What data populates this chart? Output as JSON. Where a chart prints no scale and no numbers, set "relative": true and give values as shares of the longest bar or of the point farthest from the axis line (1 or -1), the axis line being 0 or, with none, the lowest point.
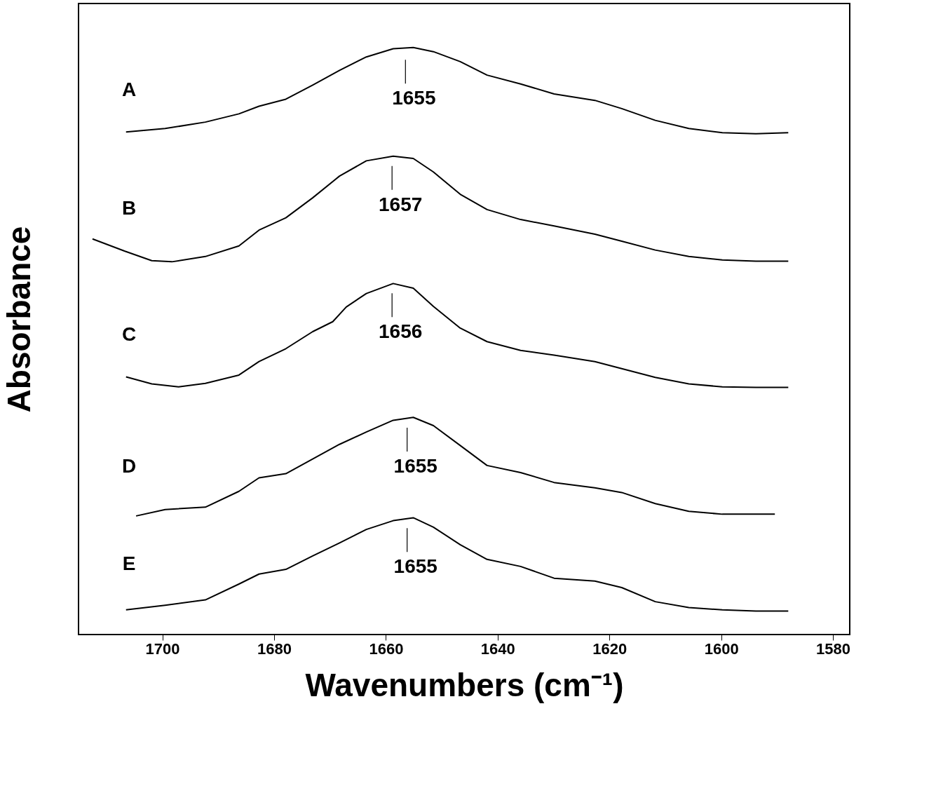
{
  "chart_data": {
    "type": "line",
    "relative": true,
    "xlabel": "Wavenumbers (cm⁻¹)",
    "ylabel": "Absorbance",
    "xlim": [
      1715,
      1577
    ],
    "xticks": [
      1700,
      1680,
      1660,
      1640,
      1620,
      1600,
      1580
    ],
    "grid": false,
    "legend": false,
    "marker": "none",
    "line_style": "solid",
    "series": [
      {
        "name": "A",
        "color": "#000000",
        "x": [
          1706.5,
          1699.5,
          1692.3,
          1686.3,
          1682.7,
          1677.9,
          1673.1,
          1668.3,
          1663.5,
          1658.7,
          1655.1,
          1651.5,
          1646.7,
          1641.9,
          1635.9,
          1629.9,
          1622.6,
          1617.8,
          1611.8,
          1605.8,
          1599.8,
          1593.8,
          1588.0
        ],
        "values": [
          0.856,
          0.862,
          0.873,
          0.887,
          0.9,
          0.912,
          0.936,
          0.961,
          0.984,
          0.998,
          1.0,
          0.993,
          0.976,
          0.953,
          0.938,
          0.921,
          0.91,
          0.896,
          0.876,
          0.862,
          0.855,
          0.853,
          0.855
        ]
      },
      {
        "name": "B",
        "color": "#000000",
        "x": [
          1712.5,
          1706.7,
          1701.9,
          1698.3,
          1692.3,
          1686.3,
          1682.7,
          1677.9,
          1673.1,
          1668.3,
          1663.5,
          1658.7,
          1655.1,
          1651.5,
          1646.7,
          1641.9,
          1635.9,
          1629.9,
          1622.6,
          1617.8,
          1611.8,
          1605.8,
          1599.8,
          1593.8,
          1588.0
        ],
        "values": [
          0.674,
          0.653,
          0.637,
          0.635,
          0.644,
          0.662,
          0.689,
          0.71,
          0.744,
          0.781,
          0.807,
          0.815,
          0.811,
          0.788,
          0.75,
          0.724,
          0.707,
          0.696,
          0.682,
          0.67,
          0.655,
          0.644,
          0.638,
          0.636,
          0.636
        ]
      },
      {
        "name": "C",
        "color": "#000000",
        "x": [
          1706.5,
          1701.9,
          1697.1,
          1692.3,
          1686.3,
          1682.7,
          1677.9,
          1673.1,
          1669.5,
          1667.1,
          1663.5,
          1658.7,
          1655.1,
          1651.5,
          1646.7,
          1641.9,
          1635.9,
          1629.9,
          1622.6,
          1617.8,
          1611.8,
          1605.8,
          1599.8,
          1593.8,
          1588.0
        ],
        "values": [
          0.439,
          0.427,
          0.422,
          0.428,
          0.442,
          0.465,
          0.487,
          0.516,
          0.533,
          0.558,
          0.581,
          0.598,
          0.59,
          0.559,
          0.522,
          0.499,
          0.484,
          0.476,
          0.465,
          0.453,
          0.438,
          0.427,
          0.422,
          0.421,
          0.421
        ]
      },
      {
        "name": "D",
        "color": "#000000",
        "x": [
          1704.7,
          1699.5,
          1692.3,
          1686.3,
          1682.7,
          1677.9,
          1673.1,
          1668.3,
          1663.5,
          1658.7,
          1655.1,
          1651.5,
          1646.7,
          1641.9,
          1635.9,
          1629.9,
          1622.6,
          1617.8,
          1611.8,
          1605.8,
          1599.8,
          1590.4
        ],
        "values": [
          0.202,
          0.213,
          0.217,
          0.244,
          0.267,
          0.274,
          0.299,
          0.324,
          0.345,
          0.365,
          0.37,
          0.356,
          0.322,
          0.288,
          0.276,
          0.259,
          0.25,
          0.242,
          0.223,
          0.21,
          0.205,
          0.205
        ]
      },
      {
        "name": "E",
        "color": "#000000",
        "x": [
          1706.5,
          1699.5,
          1692.3,
          1686.3,
          1682.7,
          1677.9,
          1673.1,
          1668.3,
          1663.5,
          1658.7,
          1655.1,
          1651.5,
          1646.7,
          1641.9,
          1635.9,
          1629.9,
          1622.6,
          1617.8,
          1611.8,
          1605.8,
          1599.8,
          1593.8,
          1588.0
        ],
        "values": [
          0.042,
          0.05,
          0.059,
          0.086,
          0.103,
          0.111,
          0.134,
          0.156,
          0.179,
          0.194,
          0.199,
          0.183,
          0.153,
          0.128,
          0.116,
          0.096,
          0.091,
          0.08,
          0.056,
          0.046,
          0.042,
          0.04,
          0.04
        ]
      }
    ],
    "annotations": [
      {
        "text": "1655",
        "x": 1656.5,
        "y": 0.996
      },
      {
        "text": "1657",
        "x": 1658.9,
        "y": 0.815
      },
      {
        "text": "1656",
        "x": 1658.9,
        "y": 0.598
      },
      {
        "text": "1655",
        "x": 1656.2,
        "y": 0.369
      },
      {
        "text": "1655",
        "x": 1656.2,
        "y": 0.198
      }
    ]
  }
}
